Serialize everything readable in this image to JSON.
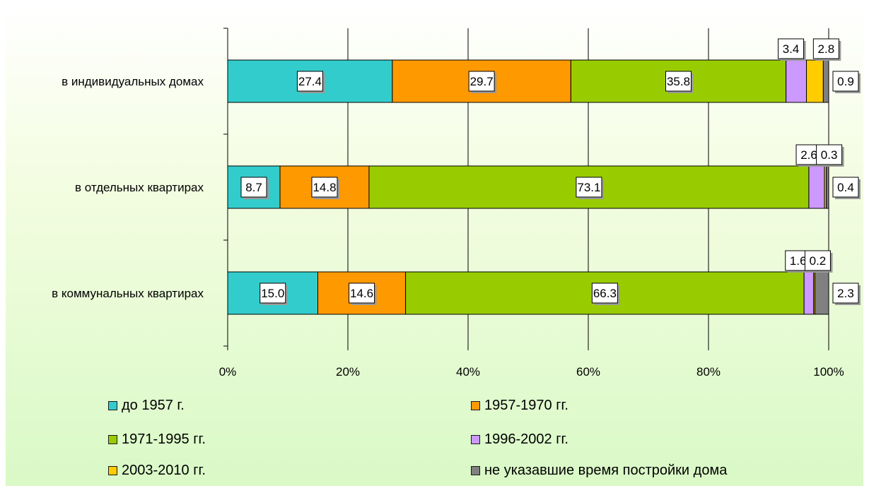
{
  "chart_data": {
    "type": "bar",
    "orientation": "horizontal",
    "stacked": "percent",
    "categories": [
      "в индивидуальных домах",
      "в отдельных квартирах",
      "в коммунальных квартирах"
    ],
    "series": [
      {
        "name": "до 1957 г.",
        "color": "#33cccc",
        "values": [
          27.4,
          8.7,
          15.0
        ]
      },
      {
        "name": "1957-1970 гг.",
        "color": "#ff9900",
        "values": [
          29.7,
          14.8,
          14.6
        ]
      },
      {
        "name": "1971-1995 гг.",
        "color": "#99cc00",
        "values": [
          35.8,
          73.1,
          66.3
        ]
      },
      {
        "name": "1996-2002 гг.",
        "color": "#cc99ff",
        "values": [
          3.4,
          2.6,
          1.6
        ]
      },
      {
        "name": "2003-2010 гг.",
        "color": "#ffcc00",
        "values": [
          2.8,
          0.3,
          0.2
        ]
      },
      {
        "name": "не указавшие время постройки дома",
        "color": "#808080",
        "values": [
          0.9,
          0.4,
          2.3
        ]
      }
    ],
    "value_labels": [
      [
        "27.4",
        "29.7",
        "35.8",
        "3.4",
        "2.8",
        "0.9"
      ],
      [
        "8.7",
        "14.8",
        "73.1",
        "2.6",
        "0.3",
        "0.4"
      ],
      [
        "15.0",
        "14.6",
        "66.3",
        "1.6",
        "0.2",
        "2.3"
      ]
    ],
    "x_ticks": [
      "0%",
      "20%",
      "40%",
      "60%",
      "80%",
      "100%"
    ],
    "xlim": [
      0,
      100
    ],
    "grid": true,
    "legend_position": "bottom"
  }
}
